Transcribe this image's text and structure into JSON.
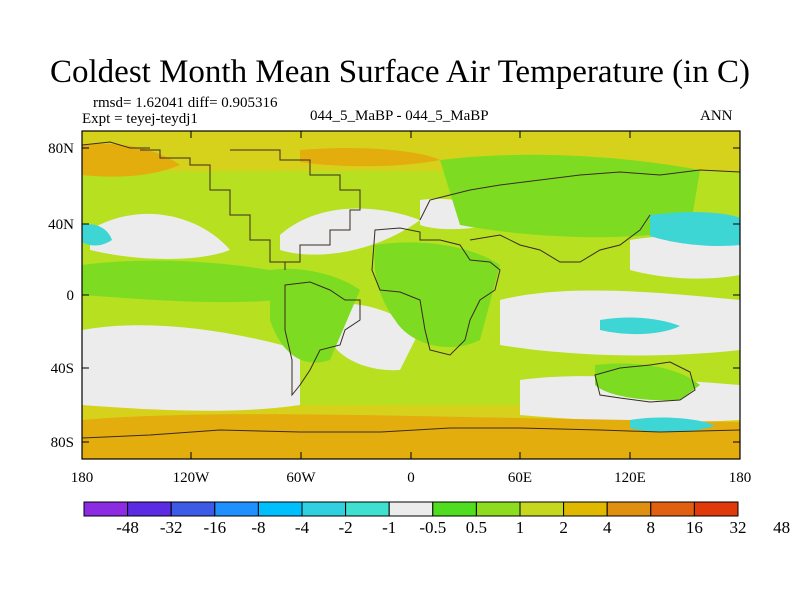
{
  "title": "Coldest Month Mean Surface Air Temperature (in C)",
  "stats": "rmsd= 1.62041 diff= 0.905316",
  "experiment": "Expt = teyej-teydj1",
  "case_label": "044_5_MaBP - 044_5_MaBP",
  "season": "ANN",
  "lat_ticks": [
    "80N",
    "40N",
    "0",
    "40S",
    "80S"
  ],
  "lon_ticks": [
    "180",
    "120W",
    "60W",
    "0",
    "60E",
    "120E",
    "180"
  ],
  "colorbar": {
    "colors": [
      "#8b2be2",
      "#5a2be2",
      "#3c5ae6",
      "#1e90ff",
      "#00bfff",
      "#30d0e0",
      "#40e0d0",
      "#ececec",
      "#50dd20",
      "#8edc20",
      "#c6d81e",
      "#e0b800",
      "#e09010",
      "#e06010",
      "#e03a0a"
    ],
    "labels": [
      "-48",
      "-32",
      "-16",
      "-8",
      "-4",
      "-2",
      "-1",
      "-0.5",
      "0.5",
      "1",
      "2",
      "4",
      "8",
      "16",
      "32",
      "48"
    ]
  },
  "map_colors": {
    "neutral": "#ececec",
    "light_green": "#b6e020",
    "green": "#7ddc22",
    "yellow": "#d6d21c",
    "orange": "#e3ad0e",
    "cyan": "#3ed5d5",
    "coast": "#3a2a22"
  }
}
